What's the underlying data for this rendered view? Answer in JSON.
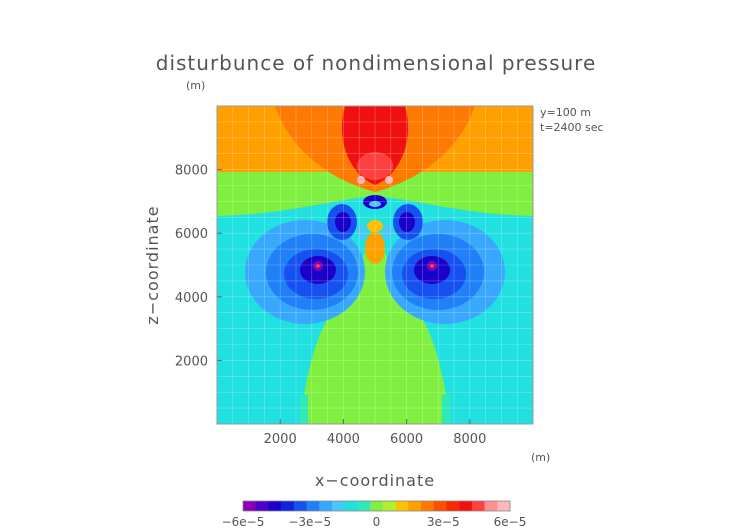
{
  "chart_data": {
    "type": "heatmap",
    "title": "disturbunce of nondimensional pressure",
    "xlabel": "x−coordinate",
    "ylabel": "z−coordinate",
    "x_unit": "(m)",
    "y_unit": "(m)",
    "info_lines": [
      "y=100  m",
      "t=2400  sec"
    ],
    "xlim": [
      0,
      10000
    ],
    "ylim": [
      0,
      10000
    ],
    "x_ticks": [
      2000,
      4000,
      6000,
      8000
    ],
    "y_ticks": [
      2000,
      4000,
      6000,
      8000
    ],
    "grid": true,
    "colorbar": {
      "range": [
        -6e-05,
        6e-05
      ],
      "tick_values": [
        -6e-05,
        -3e-05,
        0,
        3e-05,
        6e-05
      ],
      "tick_labels": [
        "−6e−5",
        "−3e−5",
        "0",
        "3e−5",
        "6e−5"
      ],
      "colors": [
        "#8a00b8",
        "#4e00c8",
        "#1a00c8",
        "#1220e0",
        "#1650f0",
        "#2080f8",
        "#38a8ff",
        "#48c8f8",
        "#20e0e0",
        "#30e8b8",
        "#80f040",
        "#b0f030",
        "#ffc000",
        "#ffa000",
        "#ff7a00",
        "#ff5000",
        "#f82800",
        "#f01010",
        "#ff4040",
        "#ff9090",
        "#ffb8b8"
      ]
    },
    "field_features": [
      {
        "kind": "level",
        "z_min": 9500,
        "z_max": 10000,
        "value": 3e-05
      },
      {
        "kind": "level",
        "z_min": 8000,
        "z_max": 9500,
        "value": 2e-05
      },
      {
        "kind": "level",
        "z_min": 6500,
        "z_max": 8000,
        "value": 5e-06
      },
      {
        "kind": "level",
        "z_min": 0,
        "z_max": 6500,
        "value": -5e-06
      },
      {
        "kind": "low",
        "x": 3250,
        "z": 4900,
        "value": -6e-05
      },
      {
        "kind": "low",
        "x": 6750,
        "z": 4900,
        "value": -6e-05
      },
      {
        "kind": "high",
        "x": 5000,
        "z": 8800,
        "value": 4.5e-05
      },
      {
        "kind": "high",
        "x": 4400,
        "z": 7700,
        "value": 6e-05
      },
      {
        "kind": "high",
        "x": 5600,
        "z": 7700,
        "value": 6e-05
      }
    ]
  }
}
